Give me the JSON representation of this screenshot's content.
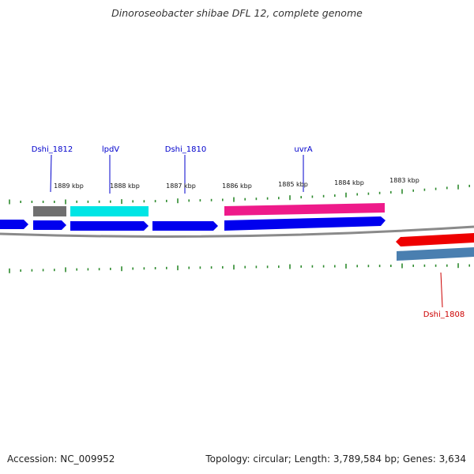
{
  "title": "Dinoroseobacter shibae DFL 12, complete genome",
  "accession_text": "Accession: NC_009952",
  "info_text": "Topology: circular; Length: 3,789,584 bp; Genes: 3,634",
  "colors": {
    "backbone": "#808080",
    "tick": "#2e8b2e",
    "forward_label": "#0000cc",
    "reverse_label": "#cc0000",
    "cds_blue": "#0000ee",
    "gene_gray": "#707070",
    "gene_cyan": "#00e5e5",
    "gene_magenta": "#ee1a8a",
    "gene_red": "#ee0000",
    "gene_steel": "#4a7fb0"
  },
  "tick_labels": [
    "1889 kbp",
    "1888 kbp",
    "1887 kbp",
    "1886 kbp",
    "1885 kbp",
    "1884 kbp",
    "1883 kbp"
  ],
  "gene_labels": [
    {
      "name": "Dshi_1812",
      "strand": "forward"
    },
    {
      "name": "lpdV",
      "strand": "forward"
    },
    {
      "name": "Dshi_1810",
      "strand": "forward"
    },
    {
      "name": "uvrA",
      "strand": "forward"
    },
    {
      "name": "Dshi_1808",
      "strand": "reverse"
    }
  ]
}
